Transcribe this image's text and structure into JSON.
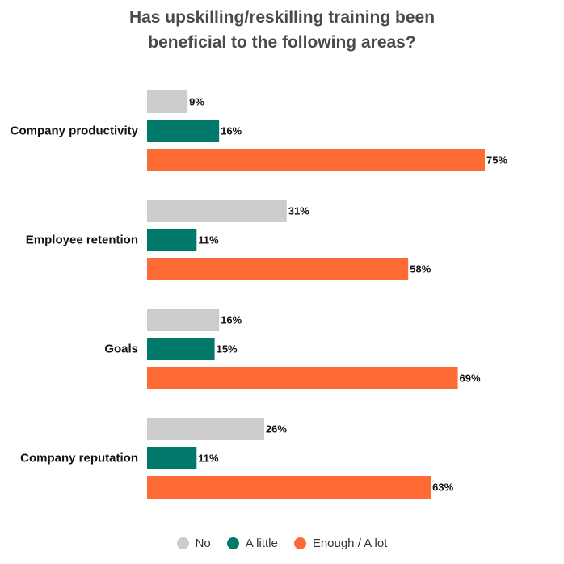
{
  "chart_data": {
    "type": "bar",
    "orientation": "horizontal",
    "title_lines": [
      "Has upskilling/reskilling training been",
      "beneficial to the following areas?"
    ],
    "categories": [
      "Company productivity",
      "Employee retention",
      "Goals",
      "Company reputation"
    ],
    "series": [
      {
        "name": "No",
        "color": "#cccccc",
        "values": [
          9,
          31,
          16,
          26
        ]
      },
      {
        "name": "A little",
        "color": "#00786a",
        "values": [
          16,
          11,
          15,
          11
        ]
      },
      {
        "name": "Enough / A lot",
        "color": "#ff6b35",
        "values": [
          75,
          58,
          69,
          63
        ]
      }
    ],
    "value_suffix": "%",
    "xlim": [
      0,
      75
    ],
    "grid": false,
    "legend_position": "bottom"
  }
}
